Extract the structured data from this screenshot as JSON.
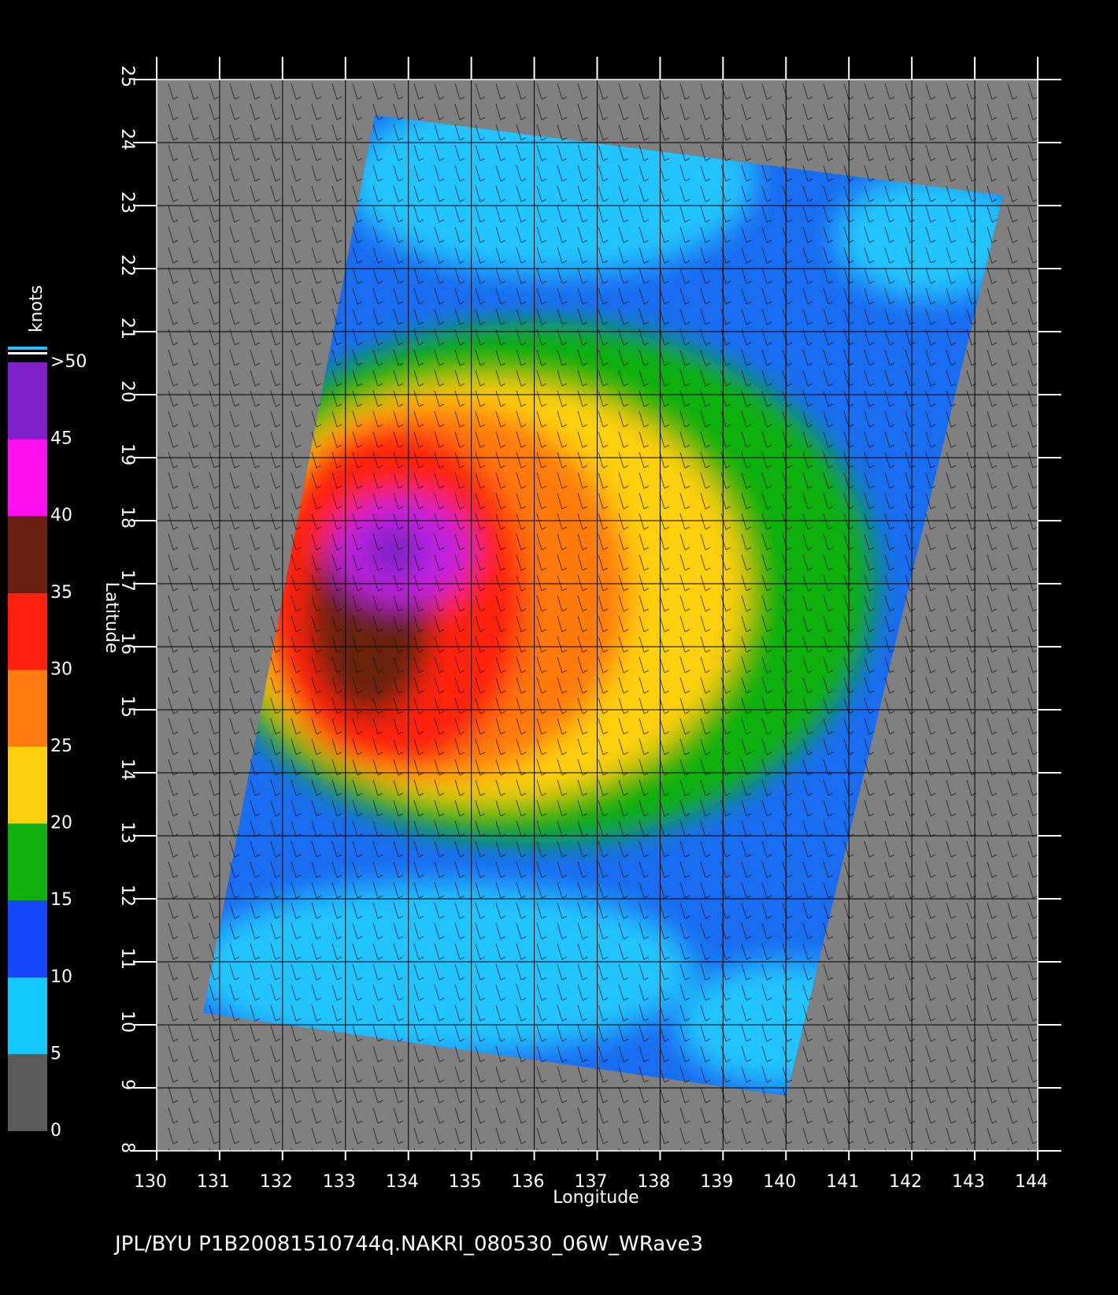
{
  "chart_data": {
    "type": "map",
    "title": "JPL/BYU  P1B20081510744q.NAKRI_080530_06W_WRave3",
    "xlabel": "Longitude",
    "ylabel": "Latitude",
    "xlim": [
      130,
      144
    ],
    "ylim": [
      8,
      25
    ],
    "xticks": [
      130,
      131,
      132,
      133,
      134,
      135,
      136,
      137,
      138,
      139,
      140,
      141,
      142,
      143,
      144
    ],
    "yticks": [
      8,
      9,
      10,
      11,
      12,
      13,
      14,
      15,
      16,
      17,
      18,
      19,
      20,
      21,
      22,
      23,
      24,
      25
    ],
    "grid": true,
    "colorbar": {
      "label": "knots",
      "ticks": [
        0,
        5,
        10,
        15,
        20,
        25,
        30,
        35,
        40,
        45,
        {
          "value": 50,
          "label": ">50"
        }
      ],
      "colors": [
        "#5a5a5a",
        "#14c8ff",
        "#1448ff",
        "#10b010",
        "#ffd010",
        "#ff7a10",
        "#ff2010",
        "#6a2010",
        "#ff10f0",
        "#8020c8"
      ]
    }
  }
}
